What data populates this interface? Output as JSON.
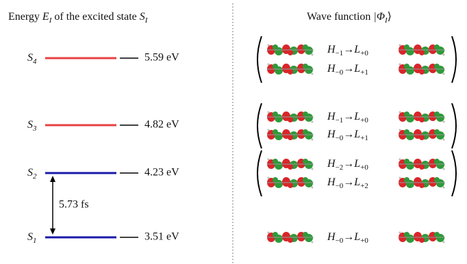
{
  "left": {
    "title": {
      "text1": "Energy ",
      "symbol": "E",
      "symbol_sub": "I",
      "text2": " of the excited state ",
      "state": "S",
      "state_sub": "I"
    }
  },
  "levels": [
    {
      "symbol": "S",
      "sub": "4",
      "energy": "5.59 eV",
      "color": "#e84040"
    },
    {
      "symbol": "S",
      "sub": "3",
      "energy": "4.82 eV",
      "color": "#e84040"
    },
    {
      "symbol": "S",
      "sub": "2",
      "energy": "4.23 eV",
      "color": "#1a1aa8"
    },
    {
      "symbol": "S",
      "sub": "1",
      "energy": "3.51 eV",
      "color": "#1a1aa8"
    }
  ],
  "period_label": "5.73 fs",
  "right": {
    "title": {
      "text": "Wave function ",
      "ket_open": "|Φ",
      "sub": "I",
      "ket_close": "⟩"
    }
  },
  "groups": [
    {
      "rows": [
        {
          "from": "H",
          "from_sub": "−1",
          "arrow": "→",
          "to": "L",
          "to_sub": "+0"
        },
        {
          "from": "H",
          "from_sub": "−0",
          "arrow": "→",
          "to": "L",
          "to_sub": "+1"
        }
      ]
    },
    {
      "rows": [
        {
          "from": "H",
          "from_sub": "−1",
          "arrow": "→",
          "to": "L",
          "to_sub": "+0"
        },
        {
          "from": "H",
          "from_sub": "−0",
          "arrow": "→",
          "to": "L",
          "to_sub": "+1"
        }
      ]
    },
    {
      "rows": [
        {
          "from": "H",
          "from_sub": "−2",
          "arrow": "→",
          "to": "L",
          "to_sub": "+0"
        },
        {
          "from": "H",
          "from_sub": "−0",
          "arrow": "→",
          "to": "L",
          "to_sub": "+2"
        }
      ]
    },
    {
      "rows": [
        {
          "from": "H",
          "from_sub": "−0",
          "arrow": "→",
          "to": "L",
          "to_sub": "+0"
        }
      ]
    }
  ]
}
